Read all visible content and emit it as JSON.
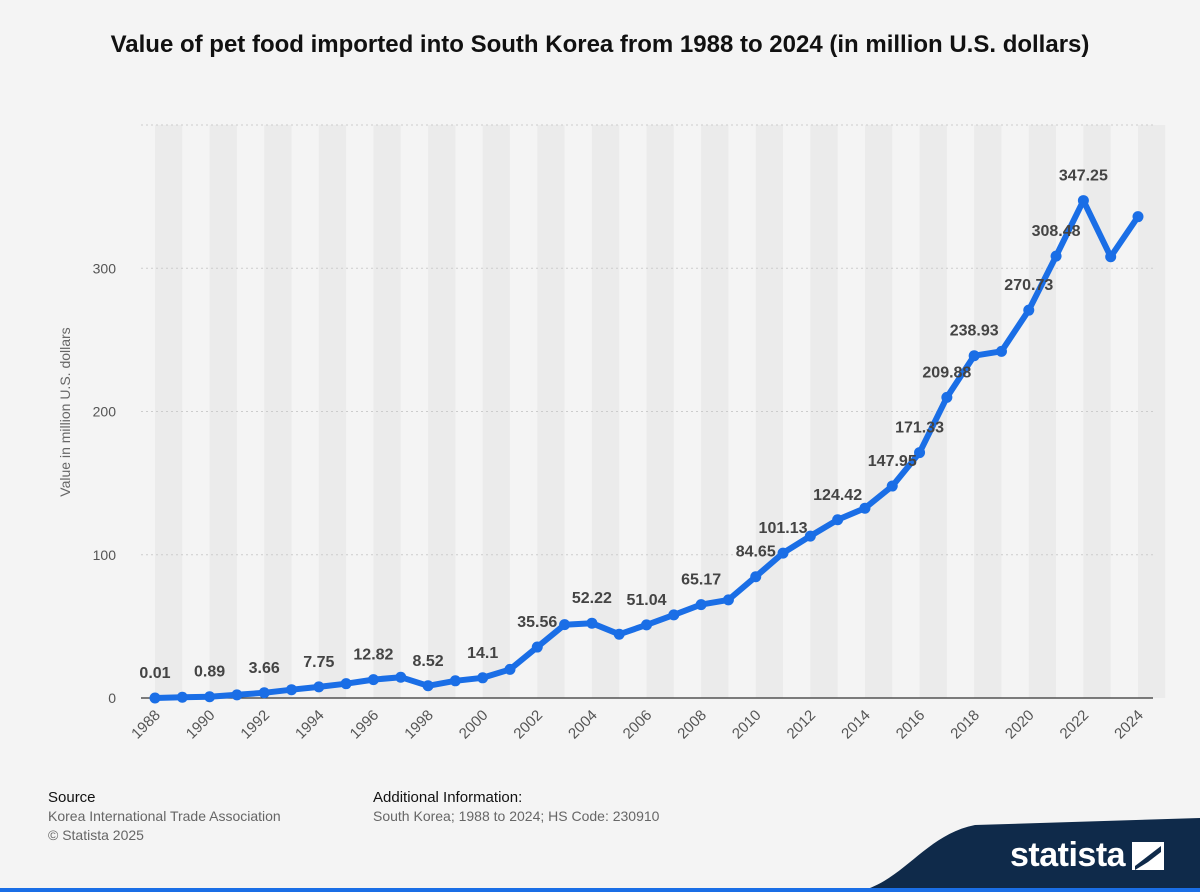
{
  "chart_data": {
    "type": "line",
    "title": "Value of pet food imported into South Korea from 1988 to 2024 (in million U.S. dollars)",
    "xlabel": "",
    "ylabel": "Value in million U.S. dollars",
    "ylim": [
      0,
      400
    ],
    "yticks": [
      0,
      100,
      200,
      300
    ],
    "grid": true,
    "x": [
      1988,
      1989,
      1990,
      1991,
      1992,
      1993,
      1994,
      1995,
      1996,
      1997,
      1998,
      1999,
      2000,
      2001,
      2002,
      2003,
      2004,
      2005,
      2006,
      2007,
      2008,
      2009,
      2010,
      2011,
      2012,
      2013,
      2014,
      2015,
      2016,
      2017,
      2018,
      2019,
      2020,
      2021,
      2022,
      2023,
      2024
    ],
    "xtick_labels": [
      "1988",
      "1990",
      "1992",
      "1994",
      "1996",
      "1998",
      "2000",
      "2002",
      "2004",
      "2006",
      "2008",
      "2010",
      "2012",
      "2014",
      "2016",
      "2018",
      "2020",
      "2022",
      "2024"
    ],
    "values": [
      0.01,
      0.5,
      0.89,
      2.2,
      3.66,
      5.8,
      7.75,
      10.0,
      12.82,
      14.5,
      8.52,
      12.0,
      14.1,
      20.0,
      35.56,
      51.2,
      52.22,
      44.5,
      51.04,
      58.0,
      65.17,
      68.5,
      84.65,
      101.13,
      113.0,
      124.42,
      132.5,
      147.95,
      171.33,
      209.88,
      238.93,
      242.0,
      270.73,
      308.48,
      347.25,
      308.0,
      336.0
    ],
    "data_labels": [
      {
        "x": 1988,
        "text": "0.01"
      },
      {
        "x": 1990,
        "text": "0.89"
      },
      {
        "x": 1992,
        "text": "3.66"
      },
      {
        "x": 1994,
        "text": "7.75"
      },
      {
        "x": 1996,
        "text": "12.82"
      },
      {
        "x": 1998,
        "text": "8.52"
      },
      {
        "x": 2000,
        "text": "14.1"
      },
      {
        "x": 2002,
        "text": "35.56"
      },
      {
        "x": 2004,
        "text": "52.22"
      },
      {
        "x": 2006,
        "text": "51.04"
      },
      {
        "x": 2008,
        "text": "65.17"
      },
      {
        "x": 2010,
        "text": "84.65"
      },
      {
        "x": 2011,
        "text": "101.13"
      },
      {
        "x": 2013,
        "text": "124.42"
      },
      {
        "x": 2015,
        "text": "147.95"
      },
      {
        "x": 2016,
        "text": "171.33"
      },
      {
        "x": 2017,
        "text": "209.88"
      },
      {
        "x": 2018,
        "text": "238.93"
      },
      {
        "x": 2020,
        "text": "270.73"
      },
      {
        "x": 2021,
        "text": "308.48"
      },
      {
        "x": 2022,
        "text": "347.25"
      }
    ],
    "colors": {
      "line": "#1a6ee6",
      "band": "#ebebeb",
      "grid": "#cccccc",
      "axis": "#333333"
    }
  },
  "footer": {
    "source_heading": "Source",
    "source_text": "Korea International Trade Association",
    "copyright": "© Statista 2025",
    "info_heading": "Additional Information:",
    "info_text": "South Korea; 1988 to 2024; HS Code: 230910"
  },
  "brand": {
    "name": "statista",
    "colors": {
      "navy": "#0f2a4a",
      "accent": "#1a6ee6"
    }
  }
}
